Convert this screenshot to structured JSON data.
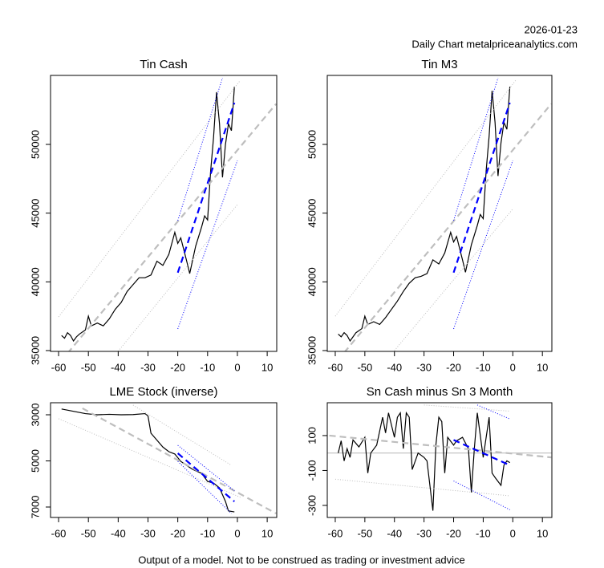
{
  "header": {
    "date": "2026-01-23",
    "subtitle": "Daily Chart metalpriceanalytics.com"
  },
  "footer": "Output of a model. Not to be construed as trading or investment advice",
  "chart_data": [
    {
      "type": "line",
      "title": "Tin Cash",
      "xlim": [
        -62.7,
        13.2
      ],
      "ylim": [
        34940,
        55020
      ],
      "xticks": [
        -60,
        -50,
        -40,
        -30,
        -20,
        -10,
        0,
        10
      ],
      "yticks": [
        35000,
        40000,
        45000,
        50000
      ],
      "series": [
        {
          "color": "#000000",
          "style": "solid",
          "x": [
            -59,
            -58,
            -57,
            -56,
            -55,
            -54,
            -53,
            -51,
            -50,
            -49,
            -47,
            -45,
            -43,
            -41,
            -39,
            -37,
            -35,
            -33,
            -31,
            -29,
            -27,
            -25,
            -23,
            -21,
            -20,
            -19,
            -17,
            -16,
            -14,
            -12,
            -11,
            -10,
            -9,
            -8,
            -7,
            -6,
            -5,
            -4,
            -3,
            -2,
            -1
          ],
          "values": [
            36100,
            35900,
            36300,
            36100,
            35700,
            36000,
            36200,
            36500,
            37500,
            36800,
            37000,
            36800,
            37300,
            38000,
            38500,
            39300,
            39800,
            40300,
            40300,
            40500,
            41500,
            41200,
            42000,
            43600,
            42800,
            43200,
            41500,
            40600,
            42600,
            44000,
            44800,
            44500,
            48000,
            50500,
            53800,
            51500,
            47600,
            50000,
            51500,
            51000,
            54200
          ]
        },
        {
          "color": "#bebebe",
          "style": "dashed",
          "x": [
            -57,
            13
          ],
          "values": [
            34800,
            52950
          ]
        },
        {
          "color": "#bebebe",
          "style": "dotted",
          "x": [
            -60,
            1
          ],
          "values": [
            37450,
            54670
          ]
        },
        {
          "color": "#bebebe",
          "style": "dotted",
          "x": [
            -40,
            0
          ],
          "values": [
            34950,
            45620
          ]
        },
        {
          "color": "#0000ff",
          "style": "dashed",
          "x": [
            -20,
            -1
          ],
          "values": [
            40670,
            53030
          ]
        },
        {
          "color": "#0000ff",
          "style": "dotted",
          "x": [
            -20,
            -5
          ],
          "values": [
            44460,
            54840
          ]
        },
        {
          "color": "#0000ff",
          "style": "dotted",
          "x": [
            -20,
            0
          ],
          "values": [
            36580,
            48830
          ]
        }
      ]
    },
    {
      "type": "line",
      "title": "Tin M3",
      "xlim": [
        -62.7,
        13.2
      ],
      "ylim": [
        34940,
        55020
      ],
      "xticks": [
        -60,
        -50,
        -40,
        -30,
        -20,
        -10,
        0,
        10
      ],
      "yticks": [
        35000,
        40000,
        45000,
        50000
      ],
      "series": [
        {
          "color": "#000000",
          "style": "solid",
          "x": [
            -59,
            -58,
            -57,
            -56,
            -55,
            -54,
            -53,
            -51,
            -50,
            -49,
            -47,
            -45,
            -43,
            -41,
            -39,
            -37,
            -35,
            -33,
            -31,
            -29,
            -27,
            -25,
            -23,
            -21,
            -20,
            -19,
            -17,
            -16,
            -14,
            -12,
            -11,
            -10,
            -9,
            -8,
            -7,
            -6,
            -5,
            -4,
            -3,
            -2,
            -1
          ],
          "values": [
            36200,
            36000,
            36300,
            36100,
            35700,
            36000,
            36300,
            36600,
            37500,
            36900,
            37100,
            36900,
            37400,
            38000,
            38600,
            39300,
            39900,
            40300,
            40400,
            40600,
            41600,
            41300,
            42100,
            43600,
            42900,
            43300,
            41600,
            40700,
            42700,
            44100,
            44900,
            44600,
            48100,
            50600,
            53900,
            51600,
            47700,
            50100,
            51600,
            51100,
            54200
          ]
        },
        {
          "color": "#bebebe",
          "style": "dashed",
          "x": [
            -57,
            13
          ],
          "values": [
            34850,
            52950
          ]
        },
        {
          "color": "#bebebe",
          "style": "dotted",
          "x": [
            -60,
            1
          ],
          "values": [
            37500,
            54670
          ]
        },
        {
          "color": "#bebebe",
          "style": "dotted",
          "x": [
            -40,
            0
          ],
          "values": [
            35000,
            45300
          ]
        },
        {
          "color": "#0000ff",
          "style": "dashed",
          "x": [
            -20,
            -1
          ],
          "values": [
            40670,
            53030
          ]
        },
        {
          "color": "#0000ff",
          "style": "dotted",
          "x": [
            -20,
            -5
          ],
          "values": [
            44460,
            54840
          ]
        },
        {
          "color": "#0000ff",
          "style": "dotted",
          "x": [
            -20,
            0
          ],
          "values": [
            36580,
            48830
          ]
        }
      ]
    },
    {
      "type": "line",
      "title": "LME Stock (inverse)",
      "xlim": [
        -62.7,
        13.2
      ],
      "ylim": [
        7452,
        2478
      ],
      "xticks": [
        -60,
        -50,
        -40,
        -30,
        -20,
        -10,
        0,
        10
      ],
      "yticks": [
        3000,
        5000,
        7000
      ],
      "series": [
        {
          "color": "#000000",
          "style": "solid",
          "x": [
            -59,
            -55,
            -51,
            -47,
            -43,
            -39,
            -35,
            -31,
            -30,
            -29,
            -27,
            -25,
            -23,
            -21,
            -19,
            -17,
            -15,
            -12,
            -10,
            -8,
            -6,
            -4,
            -3,
            -1
          ],
          "values": [
            2750,
            2850,
            2950,
            3000,
            2980,
            3000,
            2990,
            2950,
            3050,
            3800,
            4100,
            4400,
            4600,
            4700,
            5020,
            5200,
            5370,
            5540,
            5890,
            5960,
            6170,
            6760,
            7170,
            7210
          ]
        },
        {
          "color": "#bebebe",
          "style": "dashed",
          "x": [
            -52,
            13
          ],
          "values": [
            2720,
            7280
          ]
        },
        {
          "color": "#bebebe",
          "style": "dotted",
          "x": [
            -35,
            -2
          ],
          "values": [
            2580,
            5190
          ]
        },
        {
          "color": "#bebebe",
          "style": "dotted",
          "x": [
            -60,
            1
          ],
          "values": [
            3170,
            6580
          ]
        },
        {
          "color": "#0000ff",
          "style": "dashed",
          "x": [
            -20,
            -1
          ],
          "values": [
            4670,
            6760
          ]
        },
        {
          "color": "#0000ff",
          "style": "dotted",
          "x": [
            -20,
            -1
          ],
          "values": [
            4320,
            6300
          ]
        },
        {
          "color": "#0000ff",
          "style": "dotted",
          "x": [
            -20,
            -2
          ],
          "values": [
            5020,
            7280
          ]
        }
      ]
    },
    {
      "type": "line",
      "title": "Sn Cash minus Sn 3 Month",
      "xlim": [
        -62.7,
        13.2
      ],
      "ylim": [
        -369,
        288
      ],
      "xticks": [
        -60,
        -50,
        -40,
        -30,
        -20,
        -10,
        0,
        10
      ],
      "yticks": [
        -300,
        -100,
        100
      ],
      "series": [
        {
          "color": "#bebebe",
          "style": "solid",
          "x": [
            -62.7,
            13.2
          ],
          "values": [
            0,
            0
          ]
        },
        {
          "color": "#000000",
          "style": "solid",
          "x": [
            -59,
            -58,
            -57,
            -56,
            -55,
            -54,
            -52,
            -50,
            -49,
            -48,
            -46,
            -44,
            -43,
            -42,
            -40,
            -39,
            -38,
            -37,
            -36,
            -35,
            -34,
            -32,
            -30,
            -29,
            -27,
            -26,
            -25,
            -24,
            -23,
            -22,
            -20,
            -19,
            -17,
            -15,
            -14,
            -13,
            -12,
            -10,
            -8,
            -7,
            -6,
            -4,
            -3,
            -2,
            -1
          ],
          "values": [
            0,
            70,
            -45,
            25,
            -25,
            75,
            35,
            90,
            -115,
            0,
            45,
            205,
            115,
            230,
            90,
            205,
            230,
            25,
            230,
            205,
            -95,
            0,
            -25,
            -45,
            -330,
            45,
            205,
            180,
            -115,
            90,
            45,
            70,
            90,
            25,
            -225,
            25,
            230,
            -25,
            205,
            -115,
            -140,
            -185,
            -70,
            -45,
            -55
          ]
        },
        {
          "color": "#bebebe",
          "style": "dashed",
          "x": [
            -62,
            13
          ],
          "values": [
            100,
            -25
          ]
        },
        {
          "color": "#bebebe",
          "style": "dotted",
          "x": [
            -30,
            -1
          ],
          "values": [
            275,
            240
          ]
        },
        {
          "color": "#bebebe",
          "style": "dotted",
          "x": [
            -60,
            -1
          ],
          "values": [
            -150,
            -245
          ]
        },
        {
          "color": "#0000ff",
          "style": "dashed",
          "x": [
            -20,
            -1
          ],
          "values": [
            75,
            -70
          ]
        },
        {
          "color": "#0000ff",
          "style": "dotted",
          "x": [
            -12,
            -1
          ],
          "values": [
            275,
            195
          ]
        },
        {
          "color": "#0000ff",
          "style": "dotted",
          "x": [
            -20,
            -1
          ],
          "values": [
            -160,
            -325
          ]
        }
      ]
    }
  ]
}
